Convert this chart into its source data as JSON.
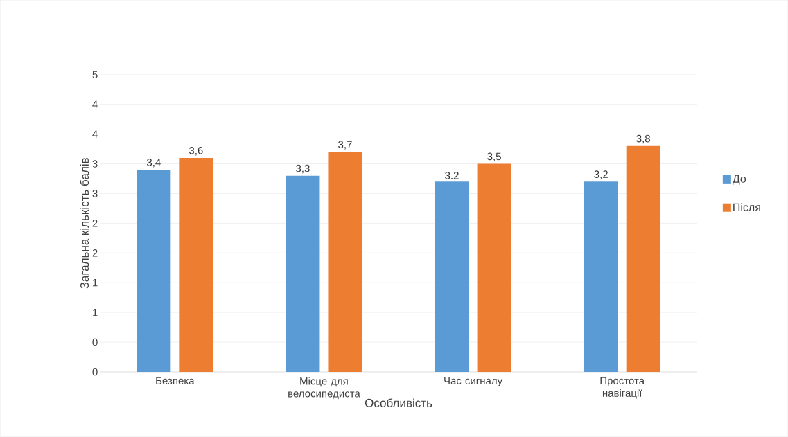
{
  "chart_data": {
    "type": "bar",
    "xlabel": "Особливість",
    "ylabel": "Загальна кількість балів",
    "categories": [
      "Безпека",
      "Місце для велосипедиста",
      "Час сигналу",
      "Простота навігації"
    ],
    "series": [
      {
        "name": "До",
        "color": "#5b9bd5",
        "values": [
          3.4,
          3.3,
          3.2,
          3.2
        ],
        "value_labels": [
          "3,4",
          "3,3",
          "3.2",
          "3,2"
        ]
      },
      {
        "name": "Після",
        "color": "#ed7d31",
        "values": [
          3.6,
          3.7,
          3.5,
          3.8
        ],
        "value_labels": [
          "3,6",
          "3,7",
          "3,5",
          "3,8"
        ]
      }
    ],
    "ylim": [
      0,
      5
    ],
    "yticks": [
      0,
      {
        "value": 0.5,
        "label": "0"
      },
      1,
      {
        "value": 1.5,
        "label": "1"
      },
      2,
      {
        "value": 2.5,
        "label": "2"
      },
      3,
      {
        "value": 3.5,
        "label": "3"
      },
      4,
      {
        "value": 4.5,
        "label": "4"
      },
      5
    ],
    "grid": "y",
    "legend": "right"
  }
}
